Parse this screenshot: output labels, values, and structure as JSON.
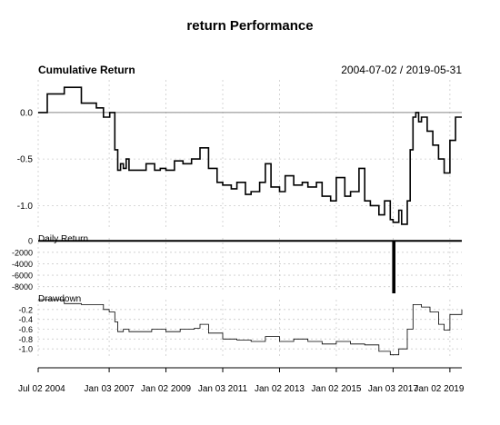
{
  "chart_data": {
    "type": "line",
    "title": "return Performance",
    "date_range": "2004-07-02 / 2019-05-31",
    "x_axis": {
      "tick_labels": [
        "Jul 02 2004",
        "Jan 03 2007",
        "Jan 02 2009",
        "Jan 03 2011",
        "Jan 02 2013",
        "Jan 02 2015",
        "Jan 03 2017",
        "Jan 02 2019"
      ],
      "tick_positions": [
        2004.5,
        2007.0,
        2009.0,
        2011.0,
        2013.0,
        2015.0,
        2017.0,
        2019.0
      ],
      "range": [
        2004.5,
        2019.42
      ]
    },
    "panels": [
      {
        "name": "Cumulative Return",
        "ylim": [
          -1.25,
          0.35
        ],
        "yticks": [
          0.0,
          -0.5,
          -1.0
        ],
        "ytick_labels": [
          "0.0",
          "-0.5",
          "-1.0"
        ],
        "reference_line": 0.0,
        "grid": true,
        "series": {
          "x": [
            2004.5,
            2004.8,
            2004.82,
            2005.4,
            2005.42,
            2006.0,
            2006.02,
            2006.5,
            2006.55,
            2006.75,
            2006.8,
            2007.0,
            2007.02,
            2007.2,
            2007.3,
            2007.4,
            2007.5,
            2007.6,
            2007.7,
            2008.0,
            2008.02,
            2008.3,
            2008.6,
            2008.8,
            2009.0,
            2009.3,
            2009.6,
            2009.9,
            2010.0,
            2010.2,
            2010.5,
            2010.8,
            2011.0,
            2011.3,
            2011.5,
            2011.8,
            2012.0,
            2012.3,
            2012.5,
            2012.7,
            2013.0,
            2013.2,
            2013.5,
            2013.8,
            2014.0,
            2014.3,
            2014.5,
            2014.8,
            2015.0,
            2015.3,
            2015.5,
            2015.8,
            2016.0,
            2016.2,
            2016.5,
            2016.7,
            2016.9,
            2017.0,
            2017.2,
            2017.3,
            2017.5,
            2017.6,
            2017.7,
            2017.8,
            2017.9,
            2018.0,
            2018.2,
            2018.4,
            2018.6,
            2018.8,
            2019.0,
            2019.2,
            2019.42
          ],
          "y": [
            0.0,
            0.0,
            0.2,
            0.2,
            0.27,
            0.27,
            0.1,
            0.1,
            0.05,
            0.05,
            -0.05,
            -0.05,
            0.0,
            -0.4,
            -0.62,
            -0.55,
            -0.6,
            -0.5,
            -0.62,
            -0.62,
            -0.62,
            -0.55,
            -0.62,
            -0.6,
            -0.62,
            -0.52,
            -0.55,
            -0.5,
            -0.5,
            -0.38,
            -0.6,
            -0.75,
            -0.78,
            -0.82,
            -0.75,
            -0.88,
            -0.85,
            -0.75,
            -0.55,
            -0.8,
            -0.85,
            -0.68,
            -0.78,
            -0.75,
            -0.8,
            -0.75,
            -0.9,
            -0.95,
            -0.7,
            -0.9,
            -0.85,
            -0.6,
            -0.95,
            -1.0,
            -1.1,
            -0.95,
            -1.15,
            -1.18,
            -1.05,
            -1.2,
            -0.95,
            -0.4,
            -0.05,
            0.0,
            -0.1,
            -0.05,
            -0.2,
            -0.35,
            -0.5,
            -0.65,
            -0.3,
            -0.05,
            -0.05
          ]
        }
      },
      {
        "name": "Daily Return",
        "ylim": [
          -9000,
          500
        ],
        "yticks": [
          0,
          -2000,
          -4000,
          -6000,
          -8000
        ],
        "ytick_labels": [
          "0",
          "-2000",
          "-4000",
          "-6000",
          "-8000"
        ],
        "grid": true,
        "series": {
          "x": [
            2004.5,
            2016.95,
            2017.0,
            2017.05,
            2019.42
          ],
          "y": [
            0,
            0,
            -9000,
            0,
            0
          ]
        }
      },
      {
        "name": "Drawdown",
        "ylim": [
          -1.2,
          0.0
        ],
        "yticks": [
          -0.2,
          -0.4,
          -0.6,
          -0.8,
          -1.0
        ],
        "ytick_labels": [
          "-0.2",
          "-0.4",
          "-0.6",
          "-0.8",
          "-1.0"
        ],
        "grid": true,
        "series": {
          "x": [
            2004.5,
            2005.4,
            2005.42,
            2006.0,
            2006.02,
            2006.8,
            2007.0,
            2007.2,
            2007.3,
            2007.5,
            2007.7,
            2008.0,
            2008.5,
            2009.0,
            2009.5,
            2010.0,
            2010.2,
            2010.5,
            2011.0,
            2011.5,
            2012.0,
            2012.5,
            2013.0,
            2013.5,
            2014.0,
            2014.5,
            2015.0,
            2015.5,
            2016.0,
            2016.5,
            2016.9,
            2017.2,
            2017.5,
            2017.7,
            2018.0,
            2018.3,
            2018.6,
            2018.8,
            2019.0,
            2019.42
          ],
          "y": [
            0.0,
            0.0,
            -0.08,
            -0.08,
            -0.1,
            -0.2,
            -0.25,
            -0.45,
            -0.65,
            -0.6,
            -0.65,
            -0.65,
            -0.6,
            -0.65,
            -0.6,
            -0.58,
            -0.5,
            -0.68,
            -0.8,
            -0.82,
            -0.85,
            -0.75,
            -0.85,
            -0.8,
            -0.85,
            -0.9,
            -0.85,
            -0.9,
            -0.92,
            -1.05,
            -1.12,
            -1.0,
            -0.6,
            -0.1,
            -0.15,
            -0.25,
            -0.5,
            -0.62,
            -0.3,
            -0.2
          ]
        }
      }
    ]
  }
}
